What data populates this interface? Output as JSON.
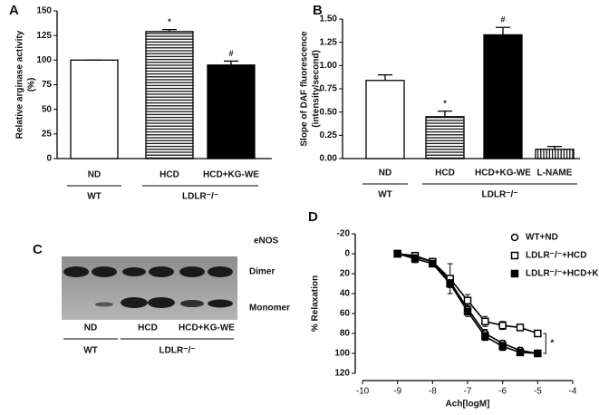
{
  "chart_data": [
    {
      "type": "bar",
      "panel": "A",
      "ylabel": [
        "Relative arginase activity",
        "(%)"
      ],
      "categories": [
        "ND",
        "HCD",
        "HCD+KG-WE"
      ],
      "values": [
        100,
        129,
        95
      ],
      "errors": [
        0,
        2,
        4
      ],
      "fills": [
        "white",
        "stripes",
        "black"
      ],
      "annotations": [
        null,
        "*",
        "#"
      ],
      "groups": [
        {
          "label": "WT",
          "size": 1
        },
        {
          "label": "LDLR⁻/⁻",
          "size": 2
        }
      ],
      "ylim": [
        0,
        150
      ],
      "yticks": [
        0,
        25,
        50,
        75,
        100,
        125,
        150
      ]
    },
    {
      "type": "bar",
      "panel": "B",
      "ylabel": [
        "Slope of DAF fluorescence",
        "(intensity/second)"
      ],
      "categories": [
        "ND",
        "HCD",
        "HCD+KG-WE",
        "L-NAME"
      ],
      "values": [
        0.84,
        0.45,
        1.33,
        0.1
      ],
      "errors": [
        0.06,
        0.06,
        0.08,
        0.03
      ],
      "fills": [
        "white",
        "stripes",
        "black",
        "vstripes"
      ],
      "annotations": [
        null,
        "*",
        "#",
        null
      ],
      "groups": [
        {
          "label": "WT",
          "size": 1
        },
        {
          "label": "LDLR⁻/⁻",
          "size": 3
        }
      ],
      "ylim": [
        0,
        1.5
      ],
      "yticks": [
        {
          "value": 0,
          "label": "0.00"
        },
        {
          "value": 0.25,
          "label": "0.25"
        },
        {
          "value": 0.5,
          "label": "0.50"
        },
        {
          "value": 0.75,
          "label": "0.75"
        },
        {
          "value": 1,
          "label": "1.00"
        },
        {
          "value": 1.25,
          "label": "1.25"
        },
        {
          "value": 1.5,
          "label": "1.50"
        }
      ]
    },
    {
      "type": "blot",
      "panel": "C",
      "protein": "eNOS",
      "bands": [
        "Dimer",
        "Monomer"
      ],
      "lanes": [
        "ND",
        "HCD",
        "HCD+KG-WE"
      ],
      "groups": [
        {
          "label": "WT",
          "size": 1
        },
        {
          "label": "LDLR⁻/⁻",
          "size": 2
        }
      ]
    },
    {
      "type": "line",
      "panel": "D",
      "xlabel": "Ach[logM]",
      "ylabel": "% Relaxation",
      "x": [
        -9,
        -8.5,
        -8,
        -7.5,
        -7,
        -6.5,
        -6,
        -5.5,
        -5
      ],
      "xlim": [
        -10,
        -4
      ],
      "xticks": [
        -10,
        -9,
        -8,
        -7,
        -6,
        -5,
        -4
      ],
      "ylim": [
        -20,
        120
      ],
      "y_inverted": true,
      "yticks": [
        -20,
        0,
        20,
        40,
        60,
        80,
        100,
        120
      ],
      "legend": "upper right",
      "annotation": "*",
      "series": [
        {
          "name": "WT+ND",
          "color": "#000000",
          "marker": "open-circle",
          "values": [
            0,
            3,
            8,
            28,
            55,
            80,
            90,
            97,
            100
          ],
          "errors": [
            2,
            3,
            3,
            5,
            5,
            4,
            3,
            3,
            3
          ]
        },
        {
          "name": "LDLR⁻/⁻+HCD",
          "color": "#000000",
          "marker": "open-square",
          "values": [
            0,
            2,
            8,
            25,
            47,
            68,
            72,
            74,
            80
          ],
          "errors": [
            2,
            3,
            3,
            15,
            6,
            5,
            4,
            3,
            3
          ]
        },
        {
          "name": "LDLR⁻/⁻+HCD+KG-WE",
          "color": "#000000",
          "marker": "filled-square",
          "values": [
            0,
            5,
            10,
            30,
            58,
            83,
            93,
            99,
            100
          ],
          "errors": [
            3,
            4,
            3,
            4,
            5,
            4,
            4,
            3,
            2
          ]
        }
      ]
    }
  ]
}
